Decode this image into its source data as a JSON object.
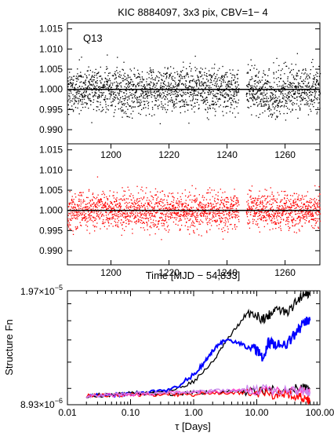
{
  "chart_data": [
    {
      "type": "scatter",
      "title": "KIC 8884097,  3x3 pix, CBV=1− 4",
      "annotation": "Q13",
      "xlim": [
        1185,
        1272
      ],
      "ylim": [
        0.9865,
        1.0165
      ],
      "yticks": [
        0.99,
        0.995,
        1.0,
        1.005,
        1.01,
        1.015
      ],
      "ytick_labels": [
        "0.990",
        "0.995",
        "1.000",
        "1.005",
        "1.010",
        "1.015"
      ],
      "reference_line": 1.0,
      "point_color": "#000000",
      "series": [
        {
          "scatter_sd": 0.0035,
          "mean": 1.0
        }
      ]
    },
    {
      "type": "scatter",
      "xlabel": "Time [MJD − 54,833]",
      "xlim": [
        1185,
        1272
      ],
      "ylim": [
        0.9865,
        1.0165
      ],
      "xticks": [
        1200,
        1220,
        1240,
        1260
      ],
      "xtick_labels": [
        "1200",
        "1220",
        "1240",
        "1260"
      ],
      "top_xticks": [
        1200,
        1220,
        1240,
        1260
      ],
      "top_xtick_labels": [
        "1200",
        "1220",
        "1240",
        "1260"
      ],
      "yticks": [
        0.99,
        0.995,
        1.0,
        1.005,
        1.01,
        1.015
      ],
      "ytick_labels": [
        "0.990",
        "0.995",
        "1.000",
        "1.005",
        "1.010",
        "1.015"
      ],
      "reference_line": 1.0,
      "point_color": "#ff0000",
      "series": [
        {
          "scatter_sd": 0.0028,
          "mean": 1.0
        }
      ]
    },
    {
      "type": "line",
      "xlabel": "τ [Days]",
      "ylabel": "Structure Fn",
      "xscale": "log",
      "yscale": "log",
      "xlim": [
        0.01,
        100
      ],
      "ylim": [
        8.93e-06,
        1.97e-05
      ],
      "xtick_labels": [
        "0.01",
        "0.10",
        "1.00",
        "10.00",
        "100.00"
      ],
      "ytick_labels": {
        "top": {
          "mantissa": "1.97",
          "exponent": "−5"
        },
        "bottom": {
          "mantissa": "8.93",
          "exponent": "−6"
        }
      },
      "series": [
        {
          "color": "#000000",
          "x": [
            0.02,
            0.05,
            0.1,
            0.2,
            0.5,
            1,
            2,
            3,
            5,
            8,
            12,
            15,
            20,
            30,
            45,
            60,
            70
          ],
          "y": [
            9.5e-06,
            9.55e-06,
            9.6e-06,
            9.7e-06,
            9.9e-06,
            1.05e-05,
            1.2e-05,
            1.35e-05,
            1.55e-05,
            1.7e-05,
            1.62e-05,
            1.65e-05,
            1.75e-05,
            1.68e-05,
            1.85e-05,
            1.97e-05,
            1.9e-05
          ]
        },
        {
          "color": "#0000ff",
          "x": [
            0.02,
            0.05,
            0.1,
            0.2,
            0.5,
            1,
            1.5,
            2,
            3,
            5,
            8,
            10,
            13,
            15,
            20,
            30,
            45,
            60,
            70
          ],
          "y": [
            9.5e-06,
            9.55e-06,
            9.65e-06,
            9.75e-06,
            1e-05,
            1.1e-05,
            1.2e-05,
            1.3e-05,
            1.4e-05,
            1.37e-05,
            1.35e-05,
            1.3e-05,
            1.22e-05,
            1.38e-05,
            1.36e-05,
            1.36e-05,
            1.5e-05,
            1.58e-05,
            1.62e-05
          ]
        },
        {
          "color": "#000000",
          "x": [
            0.02,
            0.05,
            0.1,
            0.2,
            0.5,
            1,
            2,
            5,
            10,
            20,
            40,
            60,
            70
          ],
          "y": [
            9.5e-06,
            9.6e-06,
            9.7e-06,
            9.65e-06,
            9.6e-06,
            9.75e-06,
            9.75e-06,
            9.8e-06,
            9.9e-06,
            9.85e-06,
            9.95e-06,
            1e-05,
            9.95e-06
          ]
        },
        {
          "color": "#ff0000",
          "x": [
            0.02,
            0.05,
            0.1,
            0.2,
            0.5,
            1,
            2,
            5,
            10,
            20,
            30,
            45,
            60,
            70
          ],
          "y": [
            9.5e-06,
            9.55e-06,
            9.55e-06,
            9.6e-06,
            9.6e-06,
            9.55e-06,
            9.7e-06,
            9.65e-06,
            9.7e-06,
            9.6e-06,
            9.7e-06,
            9.45e-06,
            9.35e-06,
            9.2e-06
          ]
        },
        {
          "color": "#ff44cc",
          "x": [
            0.02,
            0.05,
            0.1,
            0.2,
            0.5,
            1,
            2,
            5,
            10,
            20,
            40,
            60,
            70
          ],
          "y": [
            9.5e-06,
            9.55e-06,
            9.6e-06,
            9.65e-06,
            9.7e-06,
            9.75e-06,
            9.8e-06,
            9.85e-06,
            9.9e-06,
            9.85e-06,
            9.8e-06,
            9.75e-06,
            9.7e-06
          ]
        },
        {
          "color": "#cc88ee",
          "x": [
            0.02,
            0.05,
            0.1,
            0.2,
            0.5,
            1,
            2,
            5,
            10,
            20,
            40,
            60,
            70
          ],
          "y": [
            9.5e-06,
            9.55e-06,
            9.62e-06,
            9.68e-06,
            9.72e-06,
            9.78e-06,
            9.82e-06,
            9.88e-06,
            9.92e-06,
            9.88e-06,
            9.84e-06,
            9.8e-06,
            9.76e-06
          ]
        }
      ]
    }
  ]
}
